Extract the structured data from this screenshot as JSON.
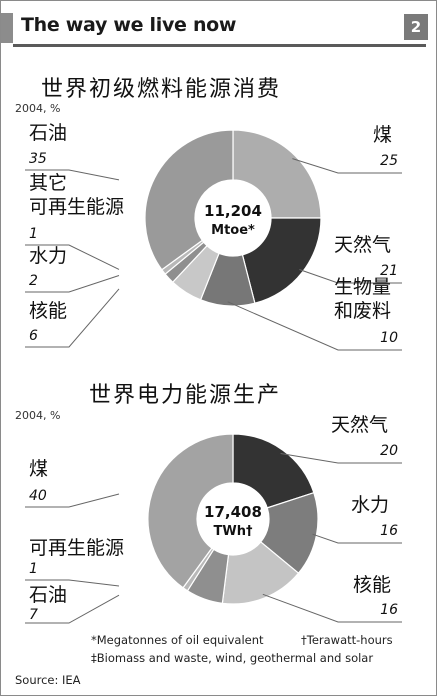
{
  "header": {
    "title": "The way we live now",
    "number": "2"
  },
  "chart_data": [
    {
      "type": "pie",
      "title": "世界初级燃料能源消费",
      "unit_note": "2004, %",
      "center_value": "11,204",
      "center_unit": "Mtoe*",
      "slices": [
        {
          "label": "煤",
          "value": 25,
          "value_label": "25",
          "color": "#adadad"
        },
        {
          "label": "天然气",
          "value": 21,
          "value_label": "21",
          "color": "#333333"
        },
        {
          "label": "生物量\n和废料",
          "value": 10,
          "value_label": "10",
          "color": "#777777"
        },
        {
          "label": "核能",
          "value": 6,
          "value_label": "6",
          "color": "#c8c8c8"
        },
        {
          "label": "水力",
          "value": 2,
          "value_label": "2",
          "color": "#8f8f8f"
        },
        {
          "label": "其它\n可再生能源",
          "value": 1,
          "value_label": "1",
          "color": "#b8b8b8"
        },
        {
          "label": "石油",
          "value": 35,
          "value_label": "35",
          "color": "#9a9a9a"
        }
      ]
    },
    {
      "type": "pie",
      "title": "世界电力能源生产",
      "unit_note": "2004, %",
      "center_value": "17,408",
      "center_unit": "TWh†",
      "slices": [
        {
          "label": "天然气",
          "value": 20,
          "value_label": "20",
          "color": "#333333"
        },
        {
          "label": "水力",
          "value": 16,
          "value_label": "16",
          "color": "#7d7d7d"
        },
        {
          "label": "核能",
          "value": 16,
          "value_label": "16",
          "color": "#c4c4c4"
        },
        {
          "label": "石油",
          "value": 7,
          "value_label": "7",
          "color": "#8f8f8f"
        },
        {
          "label": "可再生能源",
          "value": 1,
          "value_label": "1",
          "color": "#b8b8b8"
        },
        {
          "label": "煤",
          "value": 40,
          "value_label": "40",
          "color": "#a3a3a3"
        }
      ]
    }
  ],
  "footnotes": {
    "mtoe": "*Megatonnes of oil equivalent",
    "twh": "†Terawatt-hours",
    "biomass": "‡Biomass and waste, wind, geothermal and solar",
    "source": "Source: IEA"
  }
}
